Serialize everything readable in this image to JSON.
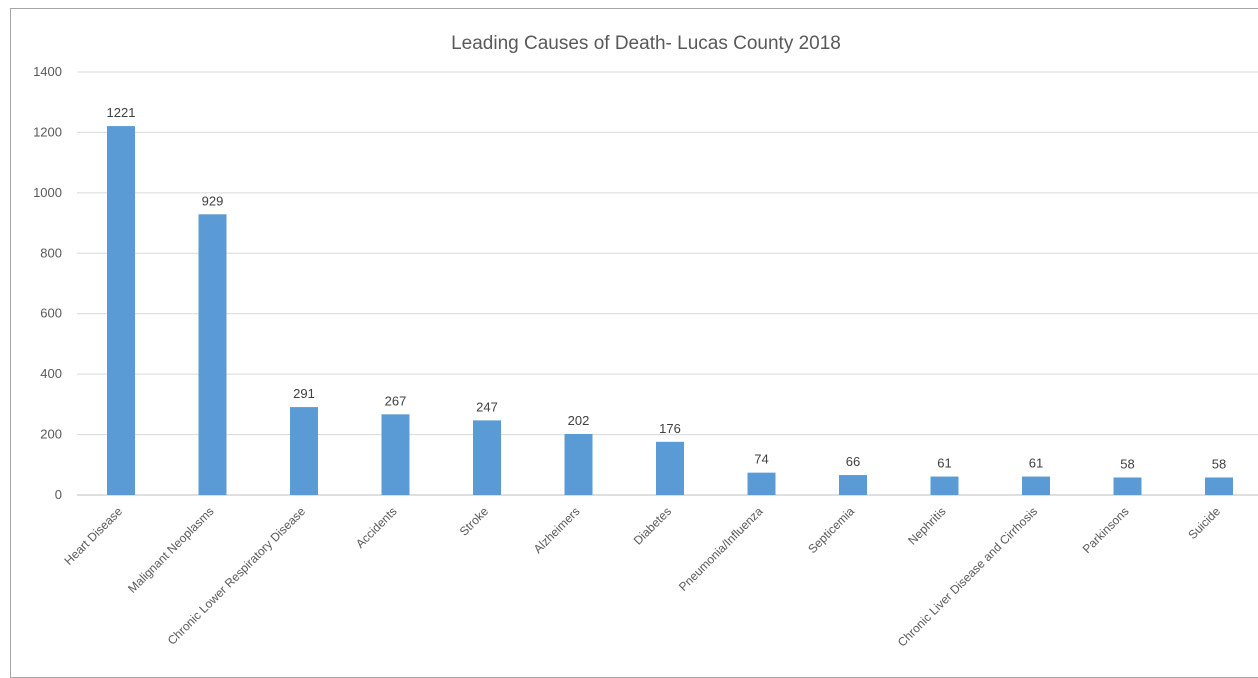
{
  "chart_data": {
    "type": "bar",
    "title": "Leading Causes of Death- Lucas County 2018",
    "xlabel": "",
    "ylabel": "",
    "ylim": [
      0,
      1400
    ],
    "yticks": [
      0,
      200,
      400,
      600,
      800,
      1000,
      1200,
      1400
    ],
    "grid": true,
    "legend": "none",
    "bar_color": "#5b9bd5",
    "categories": [
      "Heart Disease",
      "Malignant Neoplasms",
      "Chronic Lower Respiratory Disease",
      "Accidents",
      "Stroke",
      "Alzheimers",
      "Diabetes",
      "Pneumonia/Influenza",
      "Septicemia",
      "Nephritis",
      "Chronic Liver Disease and Cirrhosis",
      "Parkinsons",
      "Suicide"
    ],
    "values": [
      1221,
      929,
      291,
      267,
      247,
      202,
      176,
      74,
      66,
      61,
      61,
      58,
      58
    ]
  }
}
